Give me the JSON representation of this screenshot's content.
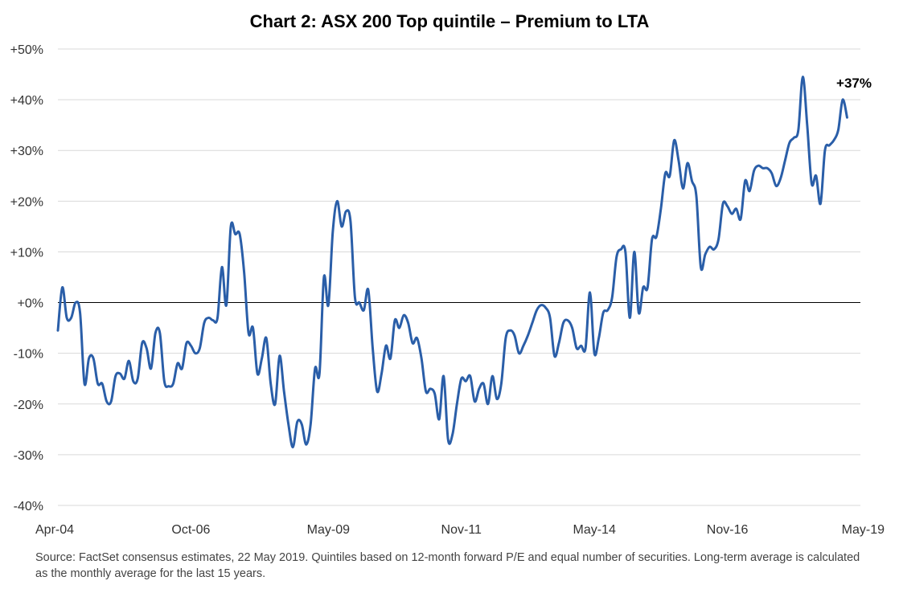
{
  "chart_data": {
    "type": "line",
    "title": "Chart 2: ASX 200 Top quintile – Premium to LTA",
    "ylim": [
      -40,
      50
    ],
    "yticks": [
      -40,
      -30,
      -20,
      -10,
      0,
      10,
      20,
      30,
      40,
      50
    ],
    "ytick_labels": [
      "-40%",
      "-30%",
      "-20%",
      "-10%",
      "+0%",
      "+10%",
      "+20%",
      "+30%",
      "+40%",
      "+50%"
    ],
    "xtick_labels": [
      "Apr-04",
      "Oct-06",
      "May-09",
      "Nov-11",
      "May-14",
      "Nov-16",
      "May-19"
    ],
    "xtick_dates": [
      "2004-04",
      "2006-10",
      "2009-05",
      "2011-11",
      "2014-05",
      "2016-11",
      "2019-05"
    ],
    "x_range": [
      "2004-04",
      "2019-05"
    ],
    "gridlines": true,
    "reference_line": 0,
    "line_color": "#2a5ea8",
    "series": [
      {
        "points": [
          [
            "2004-04",
            -5.5
          ],
          [
            "2004-05",
            3
          ],
          [
            "2004-06",
            -3
          ],
          [
            "2004-07",
            -3
          ],
          [
            "2004-08",
            0
          ],
          [
            "2004-09",
            -2
          ],
          [
            "2004-10",
            -16
          ],
          [
            "2004-11",
            -11
          ],
          [
            "2004-12",
            -11
          ],
          [
            "2005-01",
            -16
          ],
          [
            "2005-02",
            -16
          ],
          [
            "2005-03",
            -19.5
          ],
          [
            "2005-04",
            -19.5
          ],
          [
            "2005-05",
            -14.5
          ],
          [
            "2005-06",
            -14
          ],
          [
            "2005-07",
            -15
          ],
          [
            "2005-08",
            -11.5
          ],
          [
            "2005-09",
            -15.5
          ],
          [
            "2005-10",
            -15
          ],
          [
            "2005-11",
            -8
          ],
          [
            "2005-12",
            -9
          ],
          [
            "2006-01",
            -13
          ],
          [
            "2006-02",
            -6
          ],
          [
            "2006-03",
            -6
          ],
          [
            "2006-04",
            -15.5
          ],
          [
            "2006-05",
            -16.5
          ],
          [
            "2006-06",
            -16
          ],
          [
            "2006-07",
            -12
          ],
          [
            "2006-08",
            -13
          ],
          [
            "2006-09",
            -8
          ],
          [
            "2006-10",
            -8.5
          ],
          [
            "2006-11",
            -10
          ],
          [
            "2006-12",
            -9
          ],
          [
            "2007-01",
            -4
          ],
          [
            "2007-02",
            -3
          ],
          [
            "2007-03",
            -3.5
          ],
          [
            "2007-04",
            -3
          ],
          [
            "2007-05",
            7
          ],
          [
            "2007-06",
            -0.5
          ],
          [
            "2007-07",
            15
          ],
          [
            "2007-08",
            13.5
          ],
          [
            "2007-09",
            13.5
          ],
          [
            "2007-10",
            6
          ],
          [
            "2007-11",
            -6
          ],
          [
            "2007-12",
            -5
          ],
          [
            "2008-01",
            -14
          ],
          [
            "2008-02",
            -11
          ],
          [
            "2008-03",
            -7
          ],
          [
            "2008-04",
            -16
          ],
          [
            "2008-05",
            -20
          ],
          [
            "2008-06",
            -10.5
          ],
          [
            "2008-07",
            -17.5
          ],
          [
            "2008-08",
            -24
          ],
          [
            "2008-09",
            -28.5
          ],
          [
            "2008-10",
            -23.5
          ],
          [
            "2008-11",
            -24
          ],
          [
            "2008-12",
            -28
          ],
          [
            "2009-01",
            -24
          ],
          [
            "2009-02",
            -13
          ],
          [
            "2009-03",
            -14
          ],
          [
            "2009-04",
            5
          ],
          [
            "2009-05",
            -0.5
          ],
          [
            "2009-06",
            14
          ],
          [
            "2009-07",
            20
          ],
          [
            "2009-08",
            15
          ],
          [
            "2009-09",
            18
          ],
          [
            "2009-10",
            16
          ],
          [
            "2009-11",
            1
          ],
          [
            "2009-12",
            0
          ],
          [
            "2010-01",
            -1.5
          ],
          [
            "2010-02",
            2.5
          ],
          [
            "2010-03",
            -9
          ],
          [
            "2010-04",
            -17.5
          ],
          [
            "2010-05",
            -14
          ],
          [
            "2010-06",
            -8.5
          ],
          [
            "2010-07",
            -11
          ],
          [
            "2010-08",
            -3.5
          ],
          [
            "2010-09",
            -5
          ],
          [
            "2010-10",
            -2.5
          ],
          [
            "2010-11",
            -4
          ],
          [
            "2010-12",
            -8
          ],
          [
            "2011-01",
            -7
          ],
          [
            "2011-02",
            -11
          ],
          [
            "2011-03",
            -17.5
          ],
          [
            "2011-04",
            -17
          ],
          [
            "2011-05",
            -18
          ],
          [
            "2011-06",
            -23
          ],
          [
            "2011-07",
            -14.5
          ],
          [
            "2011-08",
            -27
          ],
          [
            "2011-09",
            -26
          ],
          [
            "2011-10",
            -20
          ],
          [
            "2011-11",
            -15
          ],
          [
            "2011-12",
            -15.5
          ],
          [
            "2012-01",
            -14.5
          ],
          [
            "2012-02",
            -19.5
          ],
          [
            "2012-03",
            -17
          ],
          [
            "2012-04",
            -16
          ],
          [
            "2012-05",
            -20
          ],
          [
            "2012-06",
            -14.5
          ],
          [
            "2012-07",
            -19
          ],
          [
            "2012-08",
            -16
          ],
          [
            "2012-09",
            -7
          ],
          [
            "2012-10",
            -5.5
          ],
          [
            "2012-11",
            -6.5
          ],
          [
            "2012-12",
            -10
          ],
          [
            "2013-01",
            -8.5
          ],
          [
            "2013-02",
            -6.5
          ],
          [
            "2013-03",
            -4
          ],
          [
            "2013-04",
            -1.5
          ],
          [
            "2013-05",
            -0.5
          ],
          [
            "2013-06",
            -1
          ],
          [
            "2013-07",
            -3
          ],
          [
            "2013-08",
            -10.5
          ],
          [
            "2013-09",
            -8
          ],
          [
            "2013-10",
            -4
          ],
          [
            "2013-11",
            -3.5
          ],
          [
            "2013-12",
            -5
          ],
          [
            "2014-01",
            -9
          ],
          [
            "2014-02",
            -8.5
          ],
          [
            "2014-03",
            -9
          ],
          [
            "2014-04",
            2
          ],
          [
            "2014-05",
            -10
          ],
          [
            "2014-06",
            -7
          ],
          [
            "2014-07",
            -2
          ],
          [
            "2014-08",
            -1.5
          ],
          [
            "2014-09",
            1
          ],
          [
            "2014-10",
            9
          ],
          [
            "2014-11",
            10.5
          ],
          [
            "2014-12",
            10
          ],
          [
            "2015-01",
            -3
          ],
          [
            "2015-02",
            10
          ],
          [
            "2015-03",
            -2
          ],
          [
            "2015-04",
            3
          ],
          [
            "2015-05",
            3
          ],
          [
            "2015-06",
            12.5
          ],
          [
            "2015-07",
            13
          ],
          [
            "2015-08",
            18.5
          ],
          [
            "2015-09",
            25.5
          ],
          [
            "2015-10",
            25
          ],
          [
            "2015-11",
            32
          ],
          [
            "2015-12",
            28
          ],
          [
            "2016-01",
            22.5
          ],
          [
            "2016-02",
            27.5
          ],
          [
            "2016-03",
            24
          ],
          [
            "2016-04",
            21
          ],
          [
            "2016-05",
            7
          ],
          [
            "2016-06",
            9.5
          ],
          [
            "2016-07",
            11
          ],
          [
            "2016-08",
            10.5
          ],
          [
            "2016-09",
            12.5
          ],
          [
            "2016-10",
            19.5
          ],
          [
            "2016-11",
            19
          ],
          [
            "2016-12",
            17.5
          ],
          [
            "2017-01",
            18.5
          ],
          [
            "2017-02",
            16.5
          ],
          [
            "2017-03",
            24
          ],
          [
            "2017-04",
            22
          ],
          [
            "2017-05",
            26
          ],
          [
            "2017-06",
            27
          ],
          [
            "2017-07",
            26.5
          ],
          [
            "2017-08",
            26.5
          ],
          [
            "2017-09",
            25.5
          ],
          [
            "2017-10",
            23
          ],
          [
            "2017-11",
            24.5
          ],
          [
            "2017-12",
            28
          ],
          [
            "2018-01",
            31.5
          ],
          [
            "2018-02",
            32.5
          ],
          [
            "2018-03",
            34
          ],
          [
            "2018-04",
            44.5
          ],
          [
            "2018-05",
            35
          ],
          [
            "2018-06",
            23.5
          ],
          [
            "2018-07",
            25
          ],
          [
            "2018-08",
            19.5
          ],
          [
            "2018-09",
            30
          ],
          [
            "2018-10",
            31
          ],
          [
            "2018-11",
            32
          ],
          [
            "2018-12",
            34
          ],
          [
            "2019-01",
            40
          ],
          [
            "2019-02",
            36.5
          ]
        ]
      }
    ],
    "annotation": {
      "text": "+37%"
    }
  },
  "footer": {
    "source": "Source: FactSet consensus estimates, 22 May 2019. Quintiles based on 12-month forward P/E and equal number of securities. Long-term average is calculated as the monthly average for the last 15 years."
  }
}
